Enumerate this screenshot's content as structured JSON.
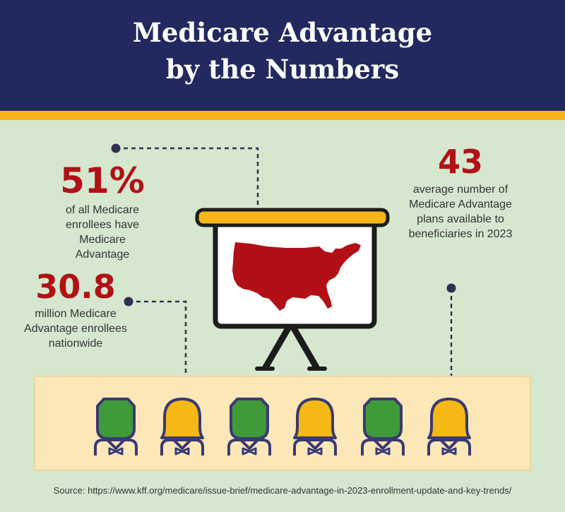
{
  "header": {
    "title_line1": "Medicare Advantage",
    "title_line2": "by the Numbers"
  },
  "stats": [
    {
      "number": "51%",
      "text": [
        "of all Medicare",
        "enrollees have",
        "Medicare",
        "Advantage"
      ]
    },
    {
      "number": "30.8",
      "text": [
        "million Medicare",
        "Advantage enrollees",
        "nationwide"
      ]
    },
    {
      "number": "43",
      "text": [
        "average number of",
        "Medicare Advantage",
        "plans available to",
        "beneficiaries in 2023"
      ]
    }
  ],
  "source": "Source: https://www.kff.org/medicare/issue-brief/medicare-advantage-in-2023-enrollment-update-and-key-trends/",
  "colors": {
    "navy": "#22295f",
    "gold": "#f3b51a",
    "background": "#d5e8cf",
    "accent_red": "#b11116",
    "green_figure": "#3f9b3a",
    "yellow_figure": "#f6b814",
    "audience_panel": "#fbe7b8"
  },
  "icons": [
    "presentation-board-icon",
    "usa-map-icon",
    "audience-person-icon"
  ]
}
